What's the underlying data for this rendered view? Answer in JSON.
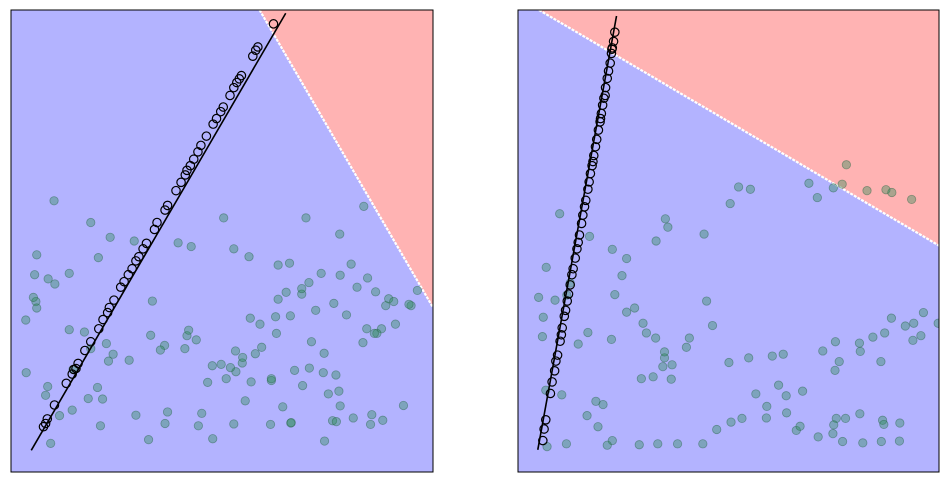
{
  "chart_data": [
    {
      "type": "scatter",
      "xlim": [
        0,
        1
      ],
      "ylim": [
        0,
        1
      ],
      "grid": false,
      "colors": {
        "region_lower": "#b3b3ff",
        "region_upper": "#ffb3b3",
        "boundary": "#ffffff",
        "points_fill": "#2e8b57",
        "line_points_edge": "#000000",
        "line": "#000000"
      },
      "boundary_line": [
        [
          0.589,
          1.0
        ],
        [
          1.0,
          0.356
        ]
      ],
      "fit_line": [
        [
          0.048,
          0.047
        ],
        [
          0.651,
          0.993
        ]
      ],
      "line_points": [
        [
          0.077,
          0.098
        ],
        [
          0.082,
          0.105
        ],
        [
          0.086,
          0.115
        ],
        [
          0.103,
          0.145
        ],
        [
          0.131,
          0.192
        ],
        [
          0.145,
          0.212
        ],
        [
          0.149,
          0.222
        ],
        [
          0.154,
          0.224
        ],
        [
          0.159,
          0.235
        ],
        [
          0.175,
          0.263
        ],
        [
          0.189,
          0.282
        ],
        [
          0.208,
          0.31
        ],
        [
          0.218,
          0.33
        ],
        [
          0.229,
          0.345
        ],
        [
          0.233,
          0.356
        ],
        [
          0.244,
          0.372
        ],
        [
          0.26,
          0.4
        ],
        [
          0.268,
          0.412
        ],
        [
          0.278,
          0.427
        ],
        [
          0.287,
          0.44
        ],
        [
          0.296,
          0.457
        ],
        [
          0.303,
          0.466
        ],
        [
          0.313,
          0.483
        ],
        [
          0.321,
          0.495
        ],
        [
          0.34,
          0.525
        ],
        [
          0.346,
          0.54
        ],
        [
          0.365,
          0.567
        ],
        [
          0.371,
          0.577
        ],
        [
          0.391,
          0.609
        ],
        [
          0.403,
          0.627
        ],
        [
          0.413,
          0.643
        ],
        [
          0.417,
          0.653
        ],
        [
          0.425,
          0.663
        ],
        [
          0.433,
          0.677
        ],
        [
          0.443,
          0.693
        ],
        [
          0.45,
          0.707
        ],
        [
          0.463,
          0.727
        ],
        [
          0.479,
          0.753
        ],
        [
          0.487,
          0.765
        ],
        [
          0.497,
          0.78
        ],
        [
          0.503,
          0.79
        ],
        [
          0.519,
          0.815
        ],
        [
          0.528,
          0.832
        ],
        [
          0.535,
          0.843
        ],
        [
          0.541,
          0.851
        ],
        [
          0.546,
          0.858
        ],
        [
          0.573,
          0.9
        ],
        [
          0.58,
          0.913
        ],
        [
          0.585,
          0.92
        ],
        [
          0.622,
          0.97
        ]
      ],
      "points": [
        [
          0.102,
          0.587
        ],
        [
          0.189,
          0.54
        ],
        [
          0.235,
          0.508
        ],
        [
          0.292,
          0.5
        ],
        [
          0.207,
          0.464
        ],
        [
          0.061,
          0.47
        ],
        [
          0.138,
          0.43
        ],
        [
          0.104,
          0.407
        ],
        [
          0.427,
          0.488
        ],
        [
          0.396,
          0.496
        ],
        [
          0.504,
          0.55
        ],
        [
          0.528,
          0.483
        ],
        [
          0.564,
          0.466
        ],
        [
          0.66,
          0.452
        ],
        [
          0.699,
          0.55
        ],
        [
          0.836,
          0.575
        ],
        [
          0.779,
          0.515
        ],
        [
          0.806,
          0.45
        ],
        [
          0.765,
          0.365
        ],
        [
          0.706,
          0.41
        ],
        [
          0.735,
          0.43
        ],
        [
          0.689,
          0.385
        ],
        [
          0.633,
          0.448
        ],
        [
          0.82,
          0.4
        ],
        [
          0.864,
          0.39
        ],
        [
          0.911,
          0.32
        ],
        [
          0.948,
          0.36
        ],
        [
          0.895,
          0.375
        ],
        [
          0.843,
          0.31
        ],
        [
          0.878,
          0.31
        ],
        [
          0.834,
          0.28
        ],
        [
          0.867,
          0.3
        ],
        [
          0.795,
          0.34
        ],
        [
          0.722,
          0.35
        ],
        [
          0.627,
          0.336
        ],
        [
          0.629,
          0.3
        ],
        [
          0.594,
          0.27
        ],
        [
          0.579,
          0.256
        ],
        [
          0.532,
          0.262
        ],
        [
          0.439,
          0.286
        ],
        [
          0.364,
          0.274
        ],
        [
          0.28,
          0.242
        ],
        [
          0.189,
          0.267
        ],
        [
          0.231,
          0.24
        ],
        [
          0.242,
          0.255
        ],
        [
          0.205,
          0.183
        ],
        [
          0.147,
          0.222
        ],
        [
          0.059,
          0.369
        ],
        [
          0.035,
          0.329
        ],
        [
          0.061,
          0.355
        ],
        [
          0.088,
          0.418
        ],
        [
          0.056,
          0.427
        ],
        [
          0.053,
          0.378
        ],
        [
          0.036,
          0.215
        ],
        [
          0.087,
          0.185
        ],
        [
          0.138,
          0.308
        ],
        [
          0.174,
          0.303
        ],
        [
          0.226,
          0.278
        ],
        [
          0.331,
          0.296
        ],
        [
          0.354,
          0.264
        ],
        [
          0.412,
          0.267
        ],
        [
          0.498,
          0.233
        ],
        [
          0.548,
          0.236
        ],
        [
          0.672,
          0.22
        ],
        [
          0.707,
          0.225
        ],
        [
          0.742,
          0.257
        ],
        [
          0.74,
          0.215
        ],
        [
          0.77,
          0.21
        ],
        [
          0.777,
          0.175
        ],
        [
          0.78,
          0.143
        ],
        [
          0.762,
          0.111
        ],
        [
          0.771,
          0.109
        ],
        [
          0.811,
          0.117
        ],
        [
          0.855,
          0.124
        ],
        [
          0.93,
          0.144
        ],
        [
          0.881,
          0.112
        ],
        [
          0.852,
          0.103
        ],
        [
          0.743,
          0.067
        ],
        [
          0.663,
          0.106
        ],
        [
          0.664,
          0.107
        ],
        [
          0.615,
          0.103
        ],
        [
          0.528,
          0.104
        ],
        [
          0.478,
          0.072
        ],
        [
          0.444,
          0.1
        ],
        [
          0.365,
          0.105
        ],
        [
          0.326,
          0.07
        ],
        [
          0.212,
          0.1
        ],
        [
          0.217,
          0.158
        ],
        [
          0.145,
          0.134
        ],
        [
          0.115,
          0.122
        ],
        [
          0.094,
          0.062
        ],
        [
          0.082,
          0.166
        ],
        [
          0.183,
          0.159
        ],
        [
          0.296,
          0.123
        ],
        [
          0.371,
          0.13
        ],
        [
          0.452,
          0.127
        ],
        [
          0.555,
          0.154
        ],
        [
          0.644,
          0.141
        ],
        [
          0.691,
          0.187
        ],
        [
          0.752,
          0.169
        ],
        [
          0.617,
          0.198
        ],
        [
          0.533,
          0.217
        ],
        [
          0.477,
          0.23
        ],
        [
          0.417,
          0.295
        ],
        [
          0.335,
          0.37
        ],
        [
          0.421,
          0.307
        ],
        [
          0.567,
          0.333
        ],
        [
          0.662,
          0.338
        ],
        [
          0.712,
          0.282
        ],
        [
          0.617,
          0.202
        ],
        [
          0.569,
          0.195
        ],
        [
          0.51,
          0.202
        ],
        [
          0.466,
          0.194
        ],
        [
          0.52,
          0.226
        ],
        [
          0.549,
          0.248
        ],
        [
          0.59,
          0.32
        ],
        [
          0.633,
          0.374
        ],
        [
          0.652,
          0.389
        ],
        [
          0.689,
          0.397
        ],
        [
          0.78,
          0.426
        ],
        [
          0.845,
          0.42
        ],
        [
          0.888,
          0.36
        ],
        [
          0.861,
          0.3
        ],
        [
          0.907,
          0.369
        ],
        [
          0.943,
          0.363
        ],
        [
          0.963,
          0.393
        ]
      ]
    },
    {
      "type": "scatter",
      "xlim": [
        0,
        1
      ],
      "ylim": [
        0,
        1
      ],
      "grid": false,
      "colors": {
        "region_lower": "#b3b3ff",
        "region_upper": "#ffb3b3",
        "boundary": "#ffffff",
        "points_fill": "#2e8b57",
        "line_points_edge": "#000000",
        "line": "#000000"
      },
      "boundary_line": [
        [
          0.05,
          1.0
        ],
        [
          1.0,
          0.49
        ]
      ],
      "fit_line": [
        [
          0.047,
          0.048
        ],
        [
          0.234,
          0.987
        ]
      ],
      "line_points": [
        [
          0.059,
          0.068
        ],
        [
          0.062,
          0.093
        ],
        [
          0.066,
          0.113
        ],
        [
          0.077,
          0.17
        ],
        [
          0.081,
          0.195
        ],
        [
          0.087,
          0.219
        ],
        [
          0.09,
          0.24
        ],
        [
          0.094,
          0.253
        ],
        [
          0.1,
          0.283
        ],
        [
          0.103,
          0.297
        ],
        [
          0.105,
          0.312
        ],
        [
          0.11,
          0.337
        ],
        [
          0.113,
          0.35
        ],
        [
          0.117,
          0.37
        ],
        [
          0.12,
          0.385
        ],
        [
          0.124,
          0.405
        ],
        [
          0.128,
          0.427
        ],
        [
          0.131,
          0.44
        ],
        [
          0.136,
          0.463
        ],
        [
          0.14,
          0.483
        ],
        [
          0.143,
          0.497
        ],
        [
          0.146,
          0.513
        ],
        [
          0.151,
          0.538
        ],
        [
          0.154,
          0.556
        ],
        [
          0.158,
          0.574
        ],
        [
          0.161,
          0.588
        ],
        [
          0.166,
          0.612
        ],
        [
          0.169,
          0.628
        ],
        [
          0.172,
          0.646
        ],
        [
          0.176,
          0.663
        ],
        [
          0.18,
          0.685
        ],
        [
          0.184,
          0.704
        ],
        [
          0.187,
          0.72
        ],
        [
          0.191,
          0.74
        ],
        [
          0.195,
          0.758
        ],
        [
          0.198,
          0.776
        ],
        [
          0.201,
          0.794
        ],
        [
          0.204,
          0.809
        ],
        [
          0.208,
          0.832
        ],
        [
          0.212,
          0.852
        ],
        [
          0.215,
          0.868
        ],
        [
          0.219,
          0.885
        ],
        [
          0.222,
          0.906
        ],
        [
          0.224,
          0.918
        ],
        [
          0.227,
          0.932
        ],
        [
          0.23,
          0.952
        ],
        [
          0.223,
          0.915
        ],
        [
          0.207,
          0.815
        ],
        [
          0.196,
          0.765
        ],
        [
          0.178,
          0.672
        ]
      ],
      "points": [
        [
          0.099,
          0.559
        ],
        [
          0.17,
          0.51
        ],
        [
          0.224,
          0.482
        ],
        [
          0.328,
          0.5
        ],
        [
          0.247,
          0.425
        ],
        [
          0.067,
          0.443
        ],
        [
          0.124,
          0.409
        ],
        [
          0.058,
          0.293
        ],
        [
          0.06,
          0.335
        ],
        [
          0.088,
          0.372
        ],
        [
          0.049,
          0.378
        ],
        [
          0.116,
          0.383
        ],
        [
          0.066,
          0.177
        ],
        [
          0.104,
          0.167
        ],
        [
          0.222,
          0.287
        ],
        [
          0.166,
          0.302
        ],
        [
          0.143,
          0.277
        ],
        [
          0.23,
          0.384
        ],
        [
          0.258,
          0.346
        ],
        [
          0.297,
          0.322
        ],
        [
          0.348,
          0.247
        ],
        [
          0.348,
          0.26
        ],
        [
          0.448,
          0.37
        ],
        [
          0.4,
          0.27
        ],
        [
          0.364,
          0.201
        ],
        [
          0.321,
          0.206
        ],
        [
          0.293,
          0.202
        ],
        [
          0.202,
          0.146
        ],
        [
          0.185,
          0.153
        ],
        [
          0.164,
          0.122
        ],
        [
          0.19,
          0.098
        ],
        [
          0.288,
          0.059
        ],
        [
          0.224,
          0.068
        ],
        [
          0.212,
          0.058
        ],
        [
          0.115,
          0.061
        ],
        [
          0.069,
          0.055
        ],
        [
          0.332,
          0.061
        ],
        [
          0.379,
          0.061
        ],
        [
          0.439,
          0.061
        ],
        [
          0.472,
          0.092
        ],
        [
          0.506,
          0.108
        ],
        [
          0.532,
          0.116
        ],
        [
          0.59,
          0.117
        ],
        [
          0.661,
          0.09
        ],
        [
          0.713,
          0.076
        ],
        [
          0.771,
          0.066
        ],
        [
          0.819,
          0.063
        ],
        [
          0.863,
          0.066
        ],
        [
          0.906,
          0.067
        ],
        [
          0.907,
          0.106
        ],
        [
          0.866,
          0.112
        ],
        [
          0.869,
          0.103
        ],
        [
          0.812,
          0.126
        ],
        [
          0.778,
          0.116
        ],
        [
          0.756,
          0.116
        ],
        [
          0.75,
          0.102
        ],
        [
          0.748,
          0.083
        ],
        [
          0.67,
          0.099
        ],
        [
          0.638,
          0.128
        ],
        [
          0.591,
          0.142
        ],
        [
          0.565,
          0.169
        ],
        [
          0.619,
          0.188
        ],
        [
          0.637,
          0.165
        ],
        [
          0.676,
          0.175
        ],
        [
          0.753,
          0.22
        ],
        [
          0.754,
          0.282
        ],
        [
          0.811,
          0.279
        ],
        [
          0.813,
          0.261
        ],
        [
          0.843,
          0.292
        ],
        [
          0.871,
          0.301
        ],
        [
          0.887,
          0.333
        ],
        [
          0.92,
          0.316
        ],
        [
          0.963,
          0.345
        ],
        [
          0.94,
          0.322
        ],
        [
          0.957,
          0.295
        ],
        [
          0.998,
          0.322
        ],
        [
          0.938,
          0.285
        ],
        [
          0.862,
          0.239
        ],
        [
          0.763,
          0.239
        ],
        [
          0.724,
          0.262
        ],
        [
          0.63,
          0.255
        ],
        [
          0.604,
          0.251
        ],
        [
          0.548,
          0.247
        ],
        [
          0.501,
          0.237
        ],
        [
          0.462,
          0.317
        ],
        [
          0.407,
          0.29
        ],
        [
          0.366,
          0.232
        ],
        [
          0.344,
          0.228
        ],
        [
          0.327,
          0.29
        ],
        [
          0.305,
          0.301
        ],
        [
          0.277,
          0.355
        ],
        [
          0.258,
          0.462
        ],
        [
          0.35,
          0.548
        ],
        [
          0.356,
          0.53
        ],
        [
          0.442,
          0.515
        ],
        [
          0.504,
          0.581
        ],
        [
          0.524,
          0.617
        ],
        [
          0.552,
          0.612
        ],
        [
          0.691,
          0.625
        ],
        [
          0.711,
          0.594
        ],
        [
          0.749,
          0.615
        ],
        [
          0.77,
          0.623
        ],
        [
          0.78,
          0.665
        ],
        [
          0.829,
          0.609
        ],
        [
          0.874,
          0.611
        ],
        [
          0.888,
          0.605
        ],
        [
          0.935,
          0.59
        ]
      ]
    }
  ]
}
